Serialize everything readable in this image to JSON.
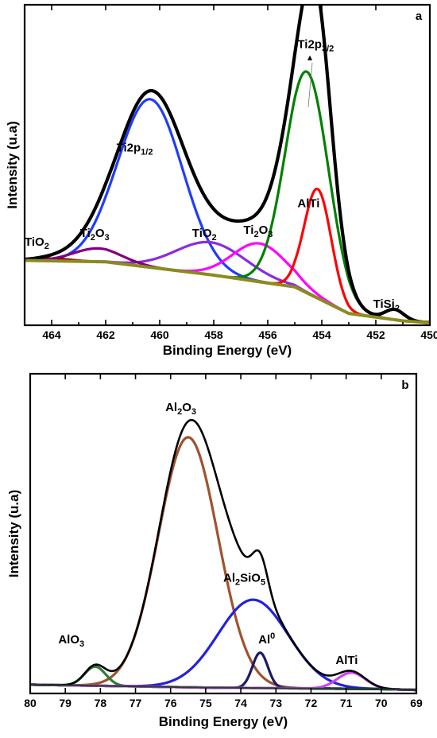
{
  "chart_data": [
    {
      "panel": "a",
      "type": "line",
      "xlabel": "Binding Energy (eV)",
      "ylabel": "Intensity (u.a)",
      "x_reversed": true,
      "xlim": [
        465,
        450
      ],
      "ylim": [
        0,
        100
      ],
      "xticks": [
        464,
        462,
        460,
        458,
        456,
        454,
        452,
        450
      ],
      "background": {
        "points": [
          [
            465,
            22
          ],
          [
            462,
            21.5
          ],
          [
            458,
            17
          ],
          [
            455,
            13
          ],
          [
            453,
            4
          ],
          [
            451,
            1.5
          ],
          [
            450.2,
            1
          ]
        ]
      },
      "series": [
        {
          "name": "Ti2p1/2",
          "label_runs": [
            {
              "t": "Ti2p"
            },
            {
              "t": "1/2",
              "sub": true
            }
          ],
          "color": "#1f3cff",
          "center": 460.35,
          "height": 57,
          "width": 1.2
        },
        {
          "name": "TiO2",
          "label_runs": [
            {
              "t": "TiO"
            },
            {
              "t": "2",
              "sub": true
            }
          ],
          "color": "#8a2be2",
          "center": 458.1,
          "height": 11,
          "width": 1.3
        },
        {
          "name": "Ti2O3",
          "label_runs": [
            {
              "t": "Ti"
            },
            {
              "t": "2",
              "sub": true
            },
            {
              "t": "O"
            },
            {
              "t": "3",
              "sub": true
            }
          ],
          "color": "#ff00ff",
          "center": 456.3,
          "height": 13,
          "width": 1.0
        },
        {
          "name": "Ti2p3/2",
          "label_runs": [
            {
              "t": "Ti2p"
            },
            {
              "t": "3/2",
              "sub": true
            }
          ],
          "color": "#008000",
          "center": 454.55,
          "height": 75,
          "width": 0.8
        },
        {
          "name": "AlTi",
          "label_runs": [
            {
              "t": "AlTi"
            }
          ],
          "color": "#ff0000",
          "center": 454.15,
          "height": 37,
          "width": 0.5
        },
        {
          "name": "TiO2",
          "label_runs": [
            {
              "t": "TiO"
            },
            {
              "t": "2",
              "sub": true
            }
          ],
          "color": "#8b0000",
          "center": 464.0,
          "height": 0.8,
          "width": 0.7
        },
        {
          "name": "Ti2O3",
          "label_runs": [
            {
              "t": "Ti"
            },
            {
              "t": "2",
              "sub": true
            },
            {
              "t": "O"
            },
            {
              "t": "3",
              "sub": true
            }
          ],
          "color": "#800080",
          "center": 462.3,
          "height": 4.5,
          "width": 0.9
        },
        {
          "name": "TiSi2",
          "label_runs": [
            {
              "t": "TiSi"
            },
            {
              "t": "2",
              "sub": true
            }
          ],
          "color": "#000080",
          "center": 451.3,
          "height": 3.5,
          "width": 0.35
        }
      ],
      "envelope_color": "#000000",
      "background_color": "#8b8b1e",
      "annotations": [
        {
          "runs": [
            {
              "t": "TiO"
            },
            {
              "t": "2",
              "sub": true
            }
          ],
          "x": 465.0,
          "y": 27
        },
        {
          "runs": [
            {
              "t": "Ti"
            },
            {
              "t": "2",
              "sub": true
            },
            {
              "t": "O"
            },
            {
              "t": "3",
              "sub": true
            }
          ],
          "x": 462.95,
          "y": 30
        },
        {
          "runs": [
            {
              "t": "Ti2p"
            },
            {
              "t": "1/2",
              "sub": true
            }
          ],
          "x": 461.6,
          "y": 59
        },
        {
          "runs": [
            {
              "t": "TiO"
            },
            {
              "t": "2",
              "sub": true
            }
          ],
          "x": 458.8,
          "y": 30
        },
        {
          "runs": [
            {
              "t": "Ti"
            },
            {
              "t": "2",
              "sub": true
            },
            {
              "t": "O"
            },
            {
              "t": "3",
              "sub": true
            }
          ],
          "x": 456.9,
          "y": 31
        },
        {
          "runs": [
            {
              "t": "AlTi"
            }
          ],
          "x": 454.9,
          "y": 40
        },
        {
          "runs": [
            {
              "t": "Ti2p"
            },
            {
              "t": "3/2",
              "sub": true
            }
          ],
          "x": 454.9,
          "y": 94
        },
        {
          "runs": [
            {
              "t": "TiSi"
            },
            {
              "t": "2",
              "sub": true
            }
          ],
          "x": 452.1,
          "y": 6
        }
      ],
      "panel_letter": "a"
    },
    {
      "panel": "b",
      "type": "line",
      "xlabel": "Binding Energy (eV)",
      "ylabel": "Intensity (u.a)",
      "x_reversed": true,
      "xlim": [
        80,
        69
      ],
      "ylim": [
        0,
        100
      ],
      "xticks": [
        80,
        79,
        78,
        77,
        76,
        75,
        74,
        73,
        72,
        71,
        70,
        69
      ],
      "background": {
        "points": [
          [
            80,
            3
          ],
          [
            75,
            2
          ],
          [
            70,
            1.5
          ],
          [
            69,
            1.2
          ]
        ]
      },
      "series": [
        {
          "name": "Al2O3",
          "label_runs": [
            {
              "t": "Al"
            },
            {
              "t": "2",
              "sub": true
            },
            {
              "t": "O"
            },
            {
              "t": "3",
              "sub": true
            }
          ],
          "color": "#a0522d",
          "center": 75.5,
          "height": 85,
          "width": 0.85
        },
        {
          "name": "Al2SiO5",
          "label_runs": [
            {
              "t": "Al"
            },
            {
              "t": "2",
              "sub": true
            },
            {
              "t": "SiO"
            },
            {
              "t": "5",
              "sub": true
            }
          ],
          "color": "#2222dd",
          "center": 73.65,
          "height": 30,
          "width": 1.0
        },
        {
          "name": "AlO3",
          "label_runs": [
            {
              "t": "AlO"
            },
            {
              "t": "3",
              "sub": true
            }
          ],
          "color": "#2e7d32",
          "center": 78.15,
          "height": 6.5,
          "width": 0.3
        },
        {
          "name": "Al0",
          "label_runs": [
            {
              "t": "Al"
            },
            {
              "t": "0",
              "sup": true
            }
          ],
          "color": "#1a1a66",
          "center": 73.45,
          "height": 12,
          "width": 0.22
        },
        {
          "name": "AlTi",
          "label_runs": [
            {
              "t": "AlTi"
            }
          ],
          "color": "#cc44ee",
          "center": 70.85,
          "height": 5.5,
          "width": 0.4
        }
      ],
      "envelope_color": "#000000",
      "background_color": "#224422",
      "annotations": [
        {
          "runs": [
            {
              "t": "AlO"
            },
            {
              "t": "3",
              "sub": true
            }
          ],
          "x": 79.2,
          "y": 17
        },
        {
          "runs": [
            {
              "t": "Al"
            },
            {
              "t": "2",
              "sub": true
            },
            {
              "t": "O"
            },
            {
              "t": "3",
              "sub": true
            }
          ],
          "x": 76.15,
          "y": 96
        },
        {
          "runs": [
            {
              "t": "Al"
            },
            {
              "t": "2",
              "sub": true
            },
            {
              "t": "SiO"
            },
            {
              "t": "5",
              "sub": true
            }
          ],
          "x": 74.5,
          "y": 38
        },
        {
          "runs": [
            {
              "t": "Al"
            },
            {
              "t": "0",
              "sup": true
            }
          ],
          "x": 73.5,
          "y": 17
        },
        {
          "runs": [
            {
              "t": "AlTi"
            }
          ],
          "x": 71.3,
          "y": 10
        }
      ],
      "panel_letter": "b"
    }
  ]
}
